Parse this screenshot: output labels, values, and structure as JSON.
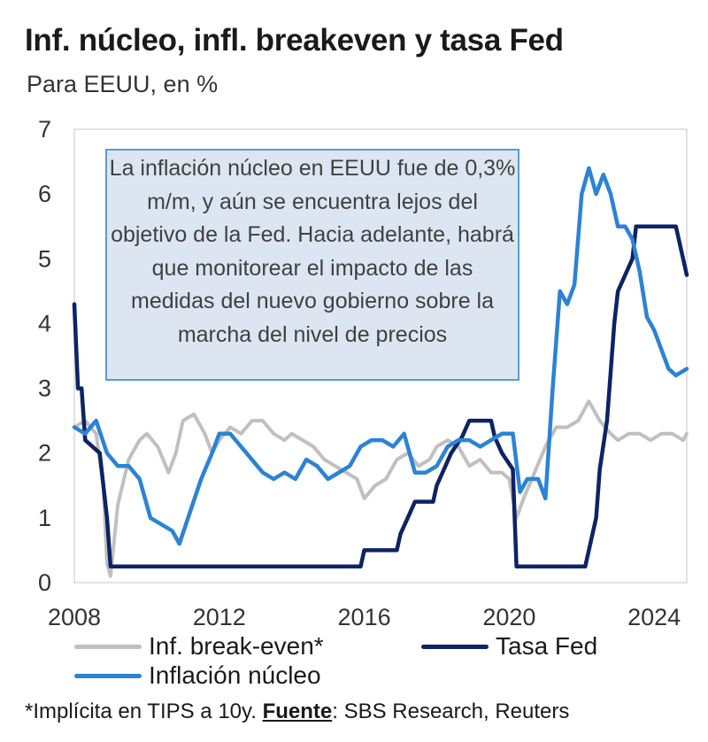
{
  "title": "Inf. núcleo, infl. breakeven y tasa Fed",
  "subtitle": "Para EEUU, en %",
  "annotation": "La inflación núcleo en EEUU fue de 0,3% m/m, y aún se encuentra lejos del objetivo de la Fed. Hacia adelante, habrá que monitorear el impacto de las medidas del nuevo gobierno sobre la marcha del nivel de precios",
  "legend": {
    "breakeven": "Inf. break-even*",
    "fed": "Tasa Fed",
    "core": "Inflación núcleo"
  },
  "footnote": {
    "pre": "*Implícita en TIPS a 10y. ",
    "source_label": "Fuente",
    "post": ": SBS Research, Reuters"
  },
  "colors": {
    "breakeven": "#c0c0c0",
    "fed": "#0d2366",
    "core": "#2b83d6",
    "annotation_bg": "#dce6f2",
    "annotation_border": "#5b9bd5"
  },
  "chart_data": {
    "type": "line",
    "title": "Inf. núcleo, infl. breakeven y tasa Fed",
    "subtitle": "Para EEUU, en %",
    "xlim": [
      2008,
      2024.9
    ],
    "ylim": [
      0,
      7
    ],
    "x_ticks": [
      2008,
      2012,
      2016,
      2020,
      2024
    ],
    "y_ticks": [
      0,
      1,
      2,
      3,
      4,
      5,
      6,
      7
    ],
    "legend_position": "bottom",
    "series": [
      {
        "name": "Inf. break-even*",
        "color": "#c0c0c0",
        "x": [
          2008,
          2008.3,
          2008.6,
          2008.8,
          2008.9,
          2009.0,
          2009.2,
          2009.5,
          2009.8,
          2010.0,
          2010.3,
          2010.6,
          2010.8,
          2011.0,
          2011.3,
          2011.6,
          2011.8,
          2012.0,
          2012.3,
          2012.6,
          2012.9,
          2013.2,
          2013.5,
          2013.8,
          2014.0,
          2014.3,
          2014.6,
          2014.9,
          2015.2,
          2015.5,
          2015.8,
          2016.0,
          2016.3,
          2016.6,
          2016.9,
          2017.2,
          2017.5,
          2017.8,
          2018.0,
          2018.3,
          2018.6,
          2018.9,
          2019.2,
          2019.5,
          2019.8,
          2020.0,
          2020.2,
          2020.4,
          2020.7,
          2021.0,
          2021.3,
          2021.6,
          2021.9,
          2022.2,
          2022.5,
          2022.8,
          2023.0,
          2023.3,
          2023.6,
          2023.9,
          2024.2,
          2024.5,
          2024.8,
          2024.9
        ],
        "y": [
          2.4,
          2.5,
          2.3,
          1.5,
          0.3,
          0.1,
          1.2,
          1.9,
          2.2,
          2.3,
          2.1,
          1.7,
          2.0,
          2.5,
          2.6,
          2.3,
          2.0,
          2.2,
          2.4,
          2.3,
          2.5,
          2.5,
          2.3,
          2.2,
          2.3,
          2.2,
          2.1,
          1.9,
          1.8,
          1.7,
          1.6,
          1.3,
          1.5,
          1.6,
          1.9,
          2.0,
          1.8,
          1.9,
          2.1,
          2.2,
          2.1,
          1.8,
          1.9,
          1.7,
          1.7,
          1.6,
          1.0,
          1.3,
          1.7,
          2.1,
          2.4,
          2.4,
          2.5,
          2.8,
          2.5,
          2.3,
          2.2,
          2.3,
          2.3,
          2.2,
          2.3,
          2.3,
          2.2,
          2.3
        ]
      },
      {
        "name": "Tasa Fed",
        "color": "#0d2366",
        "x": [
          2008,
          2008.1,
          2008.2,
          2008.3,
          2008.7,
          2008.9,
          2009.0,
          2015.9,
          2016.0,
          2016.9,
          2017.0,
          2017.2,
          2017.4,
          2017.9,
          2018.0,
          2018.2,
          2018.4,
          2018.7,
          2018.9,
          2019.5,
          2019.6,
          2019.8,
          2020.1,
          2020.2,
          2022.1,
          2022.2,
          2022.4,
          2022.5,
          2022.7,
          2022.8,
          2022.9,
          2023.0,
          2023.2,
          2023.4,
          2023.5,
          2024.6,
          2024.7,
          2024.8,
          2024.9
        ],
        "y": [
          4.3,
          3.0,
          3.0,
          2.2,
          2.0,
          1.0,
          0.25,
          0.25,
          0.5,
          0.5,
          0.75,
          1.0,
          1.25,
          1.25,
          1.5,
          1.75,
          2.0,
          2.25,
          2.5,
          2.5,
          2.25,
          2.0,
          1.75,
          0.25,
          0.25,
          0.5,
          1.0,
          1.75,
          2.5,
          3.25,
          4.0,
          4.5,
          4.75,
          5.0,
          5.5,
          5.5,
          5.25,
          5.0,
          4.75
        ]
      },
      {
        "name": "Inflación núcleo",
        "color": "#2b83d6",
        "x": [
          2008,
          2008.3,
          2008.6,
          2008.9,
          2009.2,
          2009.5,
          2009.8,
          2010.1,
          2010.4,
          2010.7,
          2010.9,
          2011.2,
          2011.5,
          2011.8,
          2012.0,
          2012.3,
          2012.6,
          2012.9,
          2013.2,
          2013.5,
          2013.8,
          2014.1,
          2014.4,
          2014.7,
          2015.0,
          2015.3,
          2015.6,
          2015.9,
          2016.2,
          2016.5,
          2016.8,
          2017.1,
          2017.4,
          2017.7,
          2018.0,
          2018.3,
          2018.6,
          2018.9,
          2019.2,
          2019.5,
          2019.8,
          2020.1,
          2020.3,
          2020.5,
          2020.8,
          2021.0,
          2021.2,
          2021.4,
          2021.6,
          2021.8,
          2022.0,
          2022.2,
          2022.4,
          2022.6,
          2022.8,
          2023.0,
          2023.2,
          2023.4,
          2023.6,
          2023.8,
          2024.0,
          2024.2,
          2024.4,
          2024.6,
          2024.9
        ],
        "y": [
          2.4,
          2.3,
          2.5,
          2.0,
          1.8,
          1.8,
          1.6,
          1.0,
          0.9,
          0.8,
          0.6,
          1.1,
          1.6,
          2.0,
          2.3,
          2.3,
          2.1,
          1.9,
          1.7,
          1.6,
          1.7,
          1.6,
          1.9,
          1.8,
          1.6,
          1.7,
          1.8,
          2.1,
          2.2,
          2.2,
          2.1,
          2.3,
          1.7,
          1.7,
          1.8,
          2.1,
          2.2,
          2.2,
          2.1,
          2.2,
          2.3,
          2.3,
          1.4,
          1.6,
          1.6,
          1.3,
          3.0,
          4.5,
          4.3,
          4.6,
          6.0,
          6.4,
          6.0,
          6.3,
          6.0,
          5.5,
          5.5,
          5.3,
          4.8,
          4.1,
          3.9,
          3.6,
          3.3,
          3.2,
          3.3
        ]
      }
    ]
  }
}
